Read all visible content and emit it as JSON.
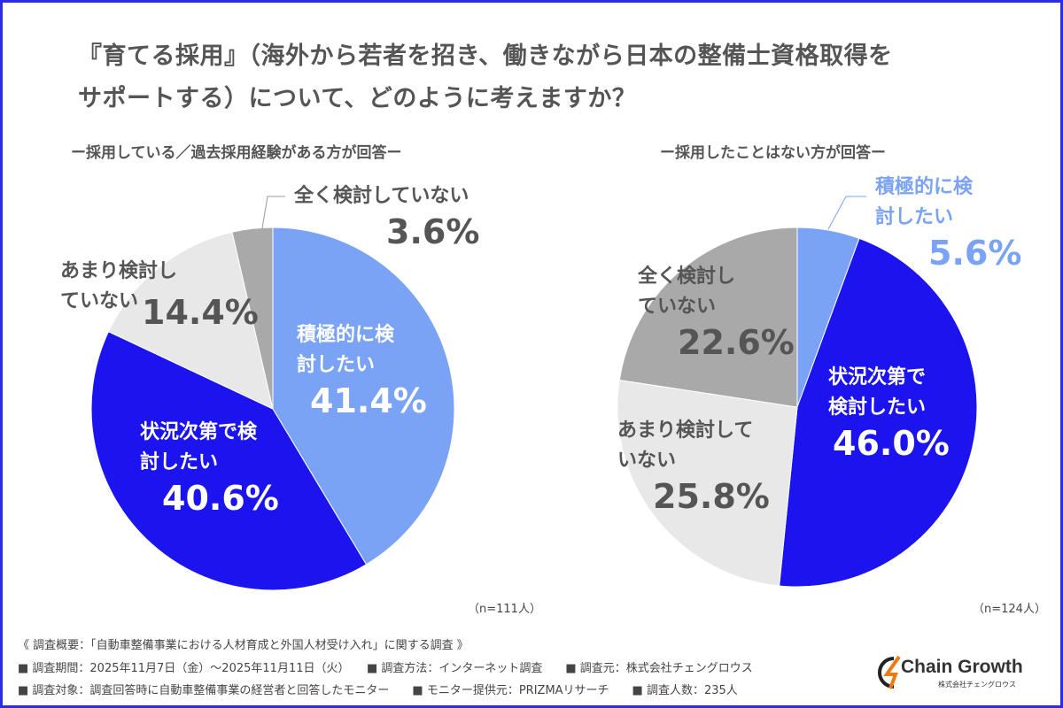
{
  "title_line1": "『育てる採用』（海外から若者を招き、働きながら日本の整備士資格取得を",
  "title_line2": "サポートする）について、どのように考えますか？",
  "colors": {
    "positive": "#7ba3f5",
    "situational": "#1b14ee",
    "little": "#e8e8e8",
    "none": "#a9a9a9",
    "frame": "#2b2bf0"
  },
  "chart_data": [
    {
      "type": "pie",
      "title": "ー採用している／過去採用経験がある方が回答ー",
      "note": "（n=111人）",
      "slices": [
        {
          "label": "積極的に検討したい",
          "value": 41.4,
          "display": "41.4%",
          "color": "#7ba3f5"
        },
        {
          "label": "状況次第で検討したい",
          "value": 40.6,
          "display": "40.6%",
          "color": "#1b14ee"
        },
        {
          "label": "あまり検討していない",
          "value": 14.4,
          "display": "14.4%",
          "color": "#e8e8e8"
        },
        {
          "label": "全く検討していない",
          "value": 3.6,
          "display": "3.6%",
          "color": "#a9a9a9"
        }
      ]
    },
    {
      "type": "pie",
      "title": "ー採用したことはない方が回答ー",
      "note": "（n=124人）",
      "slices": [
        {
          "label": "積極的に検討したい",
          "value": 5.6,
          "display": "5.6%",
          "color": "#7ba3f5"
        },
        {
          "label": "状況次第で検討したい",
          "value": 46.0,
          "display": "46.0%",
          "color": "#1b14ee"
        },
        {
          "label": "あまり検討していない",
          "value": 25.8,
          "display": "25.8%",
          "color": "#e8e8e8"
        },
        {
          "label": "全く検討していない",
          "value": 22.6,
          "display": "22.6%",
          "color": "#a9a9a9"
        }
      ]
    }
  ],
  "footer": {
    "line1": "《 調査概要：「自動車整備事業における人材育成と外国人材受け入れ」に関する調査 》",
    "line2": "■ 調査期間：2025年11月7日（金）～2025年11月11日（火）　　■ 調査方法：インターネット調査　　■ 調査元：株式会社チェングロウス",
    "line3": "■ 調査対象：調査回答時に自動車整備事業の経営者と回答したモニター　　■ モニター提供元：PRIZMAリサーチ　　■ 調査人数：235人"
  },
  "logo": {
    "name": "Chain Growth",
    "sub": "株式会社チェングロウス"
  }
}
